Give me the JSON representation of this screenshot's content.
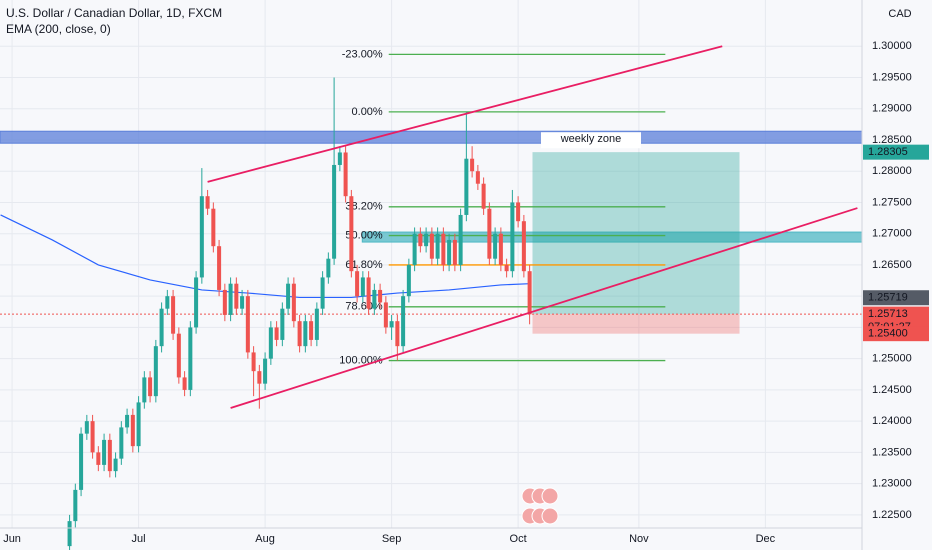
{
  "chart_data": {
    "type": "candlestick",
    "title": "U.S. Dollar / Canadian Dollar, 1D, FXCM",
    "subtitle": "EMA (200, close, 0)",
    "currency": "CAD",
    "xlim": [
      -2.1,
      147.8
    ],
    "ylim": [
      1.2229,
      1.3074
    ],
    "xticks": [
      {
        "value": 0,
        "label": "Jun"
      },
      {
        "value": 22,
        "label": "Jul"
      },
      {
        "value": 44,
        "label": "Aug"
      },
      {
        "value": 66,
        "label": "Sep"
      },
      {
        "value": 88,
        "label": "Oct"
      },
      {
        "value": 109,
        "label": "Nov"
      },
      {
        "value": 131,
        "label": "Dec"
      }
    ],
    "yticks": [
      {
        "value": 1.225,
        "label": "1.22500"
      },
      {
        "value": 1.23,
        "label": "1.23000"
      },
      {
        "value": 1.235,
        "label": "1.23500"
      },
      {
        "value": 1.24,
        "label": "1.24000"
      },
      {
        "value": 1.245,
        "label": "1.24500"
      },
      {
        "value": 1.25,
        "label": "1.25000"
      },
      {
        "value": 1.255,
        "label": "1.25500"
      },
      {
        "value": 1.26,
        "label": "1.26000"
      },
      {
        "value": 1.265,
        "label": "1.26500"
      },
      {
        "value": 1.27,
        "label": "1.27000"
      },
      {
        "value": 1.275,
        "label": "1.27500"
      },
      {
        "value": 1.28,
        "label": "1.28000"
      },
      {
        "value": 1.285,
        "label": "1.28500"
      },
      {
        "value": 1.29,
        "label": "1.29000"
      },
      {
        "value": 1.295,
        "label": "1.29500"
      },
      {
        "value": 1.3,
        "label": "1.30000"
      }
    ],
    "grid": true,
    "up_color": "#26a69a",
    "down_color": "#ef5350",
    "x": [
      10,
      11,
      12,
      13,
      14,
      15,
      16,
      17,
      18,
      19,
      20,
      21,
      22,
      23,
      24,
      25,
      26,
      27,
      28,
      29,
      30,
      31,
      32,
      33,
      34,
      35,
      36,
      37,
      38,
      39,
      40,
      41,
      42,
      43,
      44,
      45,
      46,
      47,
      48,
      49,
      50,
      51,
      52,
      53,
      54,
      55,
      56,
      57,
      58,
      59,
      60,
      61,
      62,
      63,
      64,
      65,
      66,
      67,
      68,
      69,
      70,
      71,
      72,
      73,
      74,
      75,
      76,
      77,
      78,
      79,
      80,
      81,
      82,
      83,
      84,
      85,
      86,
      87,
      88,
      89,
      90
    ],
    "open": [
      1.22,
      1.224,
      1.229,
      1.238,
      1.24,
      1.235,
      1.233,
      1.237,
      1.232,
      1.234,
      1.239,
      1.241,
      1.236,
      1.243,
      1.247,
      1.244,
      1.252,
      1.258,
      1.26,
      1.254,
      1.247,
      1.245,
      1.255,
      1.263,
      1.276,
      1.274,
      1.268,
      1.261,
      1.257,
      1.262,
      1.258,
      1.26,
      1.251,
      1.248,
      1.246,
      1.25,
      1.255,
      1.253,
      1.258,
      1.262,
      1.256,
      1.252,
      1.256,
      1.253,
      1.258,
      1.263,
      1.266,
      1.281,
      1.283,
      1.276,
      1.264,
      1.26,
      1.263,
      1.258,
      1.261,
      1.259,
      1.255,
      1.256,
      1.252,
      1.26,
      1.265,
      1.27,
      1.268,
      1.27,
      1.266,
      1.27,
      1.265,
      1.269,
      1.265,
      1.273,
      1.282,
      1.28,
      1.278,
      1.274,
      1.266,
      1.27,
      1.265,
      1.264,
      1.275,
      1.272,
      1.264
    ],
    "high": [
      1.225,
      1.23,
      1.239,
      1.241,
      1.241,
      1.236,
      1.238,
      1.238,
      1.235,
      1.24,
      1.242,
      1.242,
      1.244,
      1.248,
      1.248,
      1.253,
      1.259,
      1.261,
      1.261,
      1.255,
      1.248,
      1.256,
      1.264,
      1.2805,
      1.277,
      1.275,
      1.269,
      1.262,
      1.263,
      1.263,
      1.261,
      1.261,
      1.252,
      1.249,
      1.251,
      1.256,
      1.256,
      1.259,
      1.263,
      1.263,
      1.257,
      1.257,
      1.257,
      1.259,
      1.264,
      1.267,
      1.295,
      1.284,
      1.284,
      1.277,
      1.265,
      1.264,
      1.264,
      1.262,
      1.262,
      1.26,
      1.257,
      1.257,
      1.261,
      1.266,
      1.271,
      1.271,
      1.271,
      1.271,
      1.271,
      1.271,
      1.27,
      1.27,
      1.274,
      1.2895,
      1.284,
      1.281,
      1.279,
      1.275,
      1.271,
      1.271,
      1.266,
      1.277,
      1.276,
      1.273,
      1.265
    ],
    "low": [
      1.219,
      1.223,
      1.228,
      1.237,
      1.234,
      1.232,
      1.232,
      1.231,
      1.231,
      1.233,
      1.238,
      1.235,
      1.235,
      1.242,
      1.243,
      1.243,
      1.251,
      1.257,
      1.253,
      1.246,
      1.244,
      1.244,
      1.254,
      1.262,
      1.273,
      1.267,
      1.26,
      1.256,
      1.256,
      1.257,
      1.257,
      1.25,
      1.244,
      1.242,
      1.245,
      1.249,
      1.252,
      1.252,
      1.257,
      1.255,
      1.251,
      1.251,
      1.252,
      1.252,
      1.257,
      1.262,
      1.265,
      1.28,
      1.275,
      1.263,
      1.259,
      1.259,
      1.257,
      1.257,
      1.258,
      1.254,
      1.253,
      1.2497,
      1.251,
      1.259,
      1.264,
      1.267,
      1.267,
      1.265,
      1.265,
      1.264,
      1.264,
      1.264,
      1.264,
      1.272,
      1.279,
      1.277,
      1.273,
      1.265,
      1.265,
      1.264,
      1.263,
      1.263,
      1.271,
      1.263,
      1.2555
    ],
    "close": [
      1.224,
      1.229,
      1.238,
      1.24,
      1.235,
      1.233,
      1.237,
      1.232,
      1.234,
      1.239,
      1.241,
      1.236,
      1.243,
      1.247,
      1.244,
      1.252,
      1.258,
      1.26,
      1.254,
      1.247,
      1.245,
      1.255,
      1.263,
      1.276,
      1.274,
      1.268,
      1.261,
      1.257,
      1.262,
      1.258,
      1.26,
      1.251,
      1.248,
      1.246,
      1.25,
      1.255,
      1.253,
      1.258,
      1.262,
      1.256,
      1.252,
      1.256,
      1.253,
      1.258,
      1.263,
      1.266,
      1.281,
      1.283,
      1.276,
      1.264,
      1.26,
      1.263,
      1.258,
      1.261,
      1.259,
      1.255,
      1.256,
      1.252,
      1.26,
      1.265,
      1.27,
      1.268,
      1.27,
      1.266,
      1.27,
      1.265,
      1.269,
      1.265,
      1.273,
      1.282,
      1.28,
      1.278,
      1.274,
      1.266,
      1.27,
      1.265,
      1.264,
      1.275,
      1.272,
      1.264,
      1.2571
    ],
    "ema": {
      "color": "#2962ff",
      "x": [
        -2,
        7,
        15,
        24,
        33,
        41,
        50,
        59,
        67,
        76,
        85,
        90
      ],
      "values": [
        1.273,
        1.269,
        1.265,
        1.2626,
        1.261,
        1.2605,
        1.2598,
        1.2598,
        1.2605,
        1.261,
        1.2618,
        1.262
      ]
    },
    "trendlines": [
      {
        "color": "#e91e63",
        "x": [
          34,
          123.5
        ],
        "values": [
          1.2783,
          1.3
        ]
      },
      {
        "color": "#e91e63",
        "x": [
          38,
          147
        ],
        "values": [
          1.2421,
          1.2741
        ]
      }
    ],
    "fib": {
      "x": [
        65.5,
        113.6
      ],
      "levels": [
        {
          "label": "-23.00%",
          "price": 1.2987,
          "color": "#4caf50"
        },
        {
          "label": "0.00%",
          "price": 1.2895,
          "color": "#4caf50"
        },
        {
          "label": "38.20%",
          "price": 1.2743,
          "color": "#4caf50"
        },
        {
          "label": "50.00%",
          "price": 1.2697,
          "color": "#4caf50"
        },
        {
          "label": "61.80%",
          "price": 1.265,
          "color": "#ff9800"
        },
        {
          "label": "78.60%",
          "price": 1.2583,
          "color": "#4caf50"
        },
        {
          "label": "100.00%",
          "price": 1.2497,
          "color": "#4caf50"
        }
      ]
    },
    "zones": [
      {
        "label": "weekly zone",
        "x": [
          -2.1,
          147.8
        ],
        "values": [
          1.2864,
          1.28448
        ],
        "color": "#5b7fd9"
      },
      {
        "x": [
          60.9,
          147.8
        ],
        "values": [
          1.27026,
          1.26866
        ],
        "color": "#4fb8c4"
      }
    ],
    "position": {
      "x": [
        90.5,
        126.5
      ],
      "target": 1.28305,
      "entry": 1.25713,
      "stop": 1.254
    },
    "price_labels": [
      {
        "value": 1.28305,
        "label": "1.28305",
        "color": "#26a69a"
      },
      {
        "value": 1.25719,
        "label": "1.25719",
        "color": "#555b66"
      },
      {
        "value": 1.25713,
        "label": "1.25713",
        "time": "07:01:27",
        "color": "#ef5350"
      },
      {
        "value": 1.254,
        "label": "1.25400",
        "color": "#ef5350"
      }
    ]
  }
}
